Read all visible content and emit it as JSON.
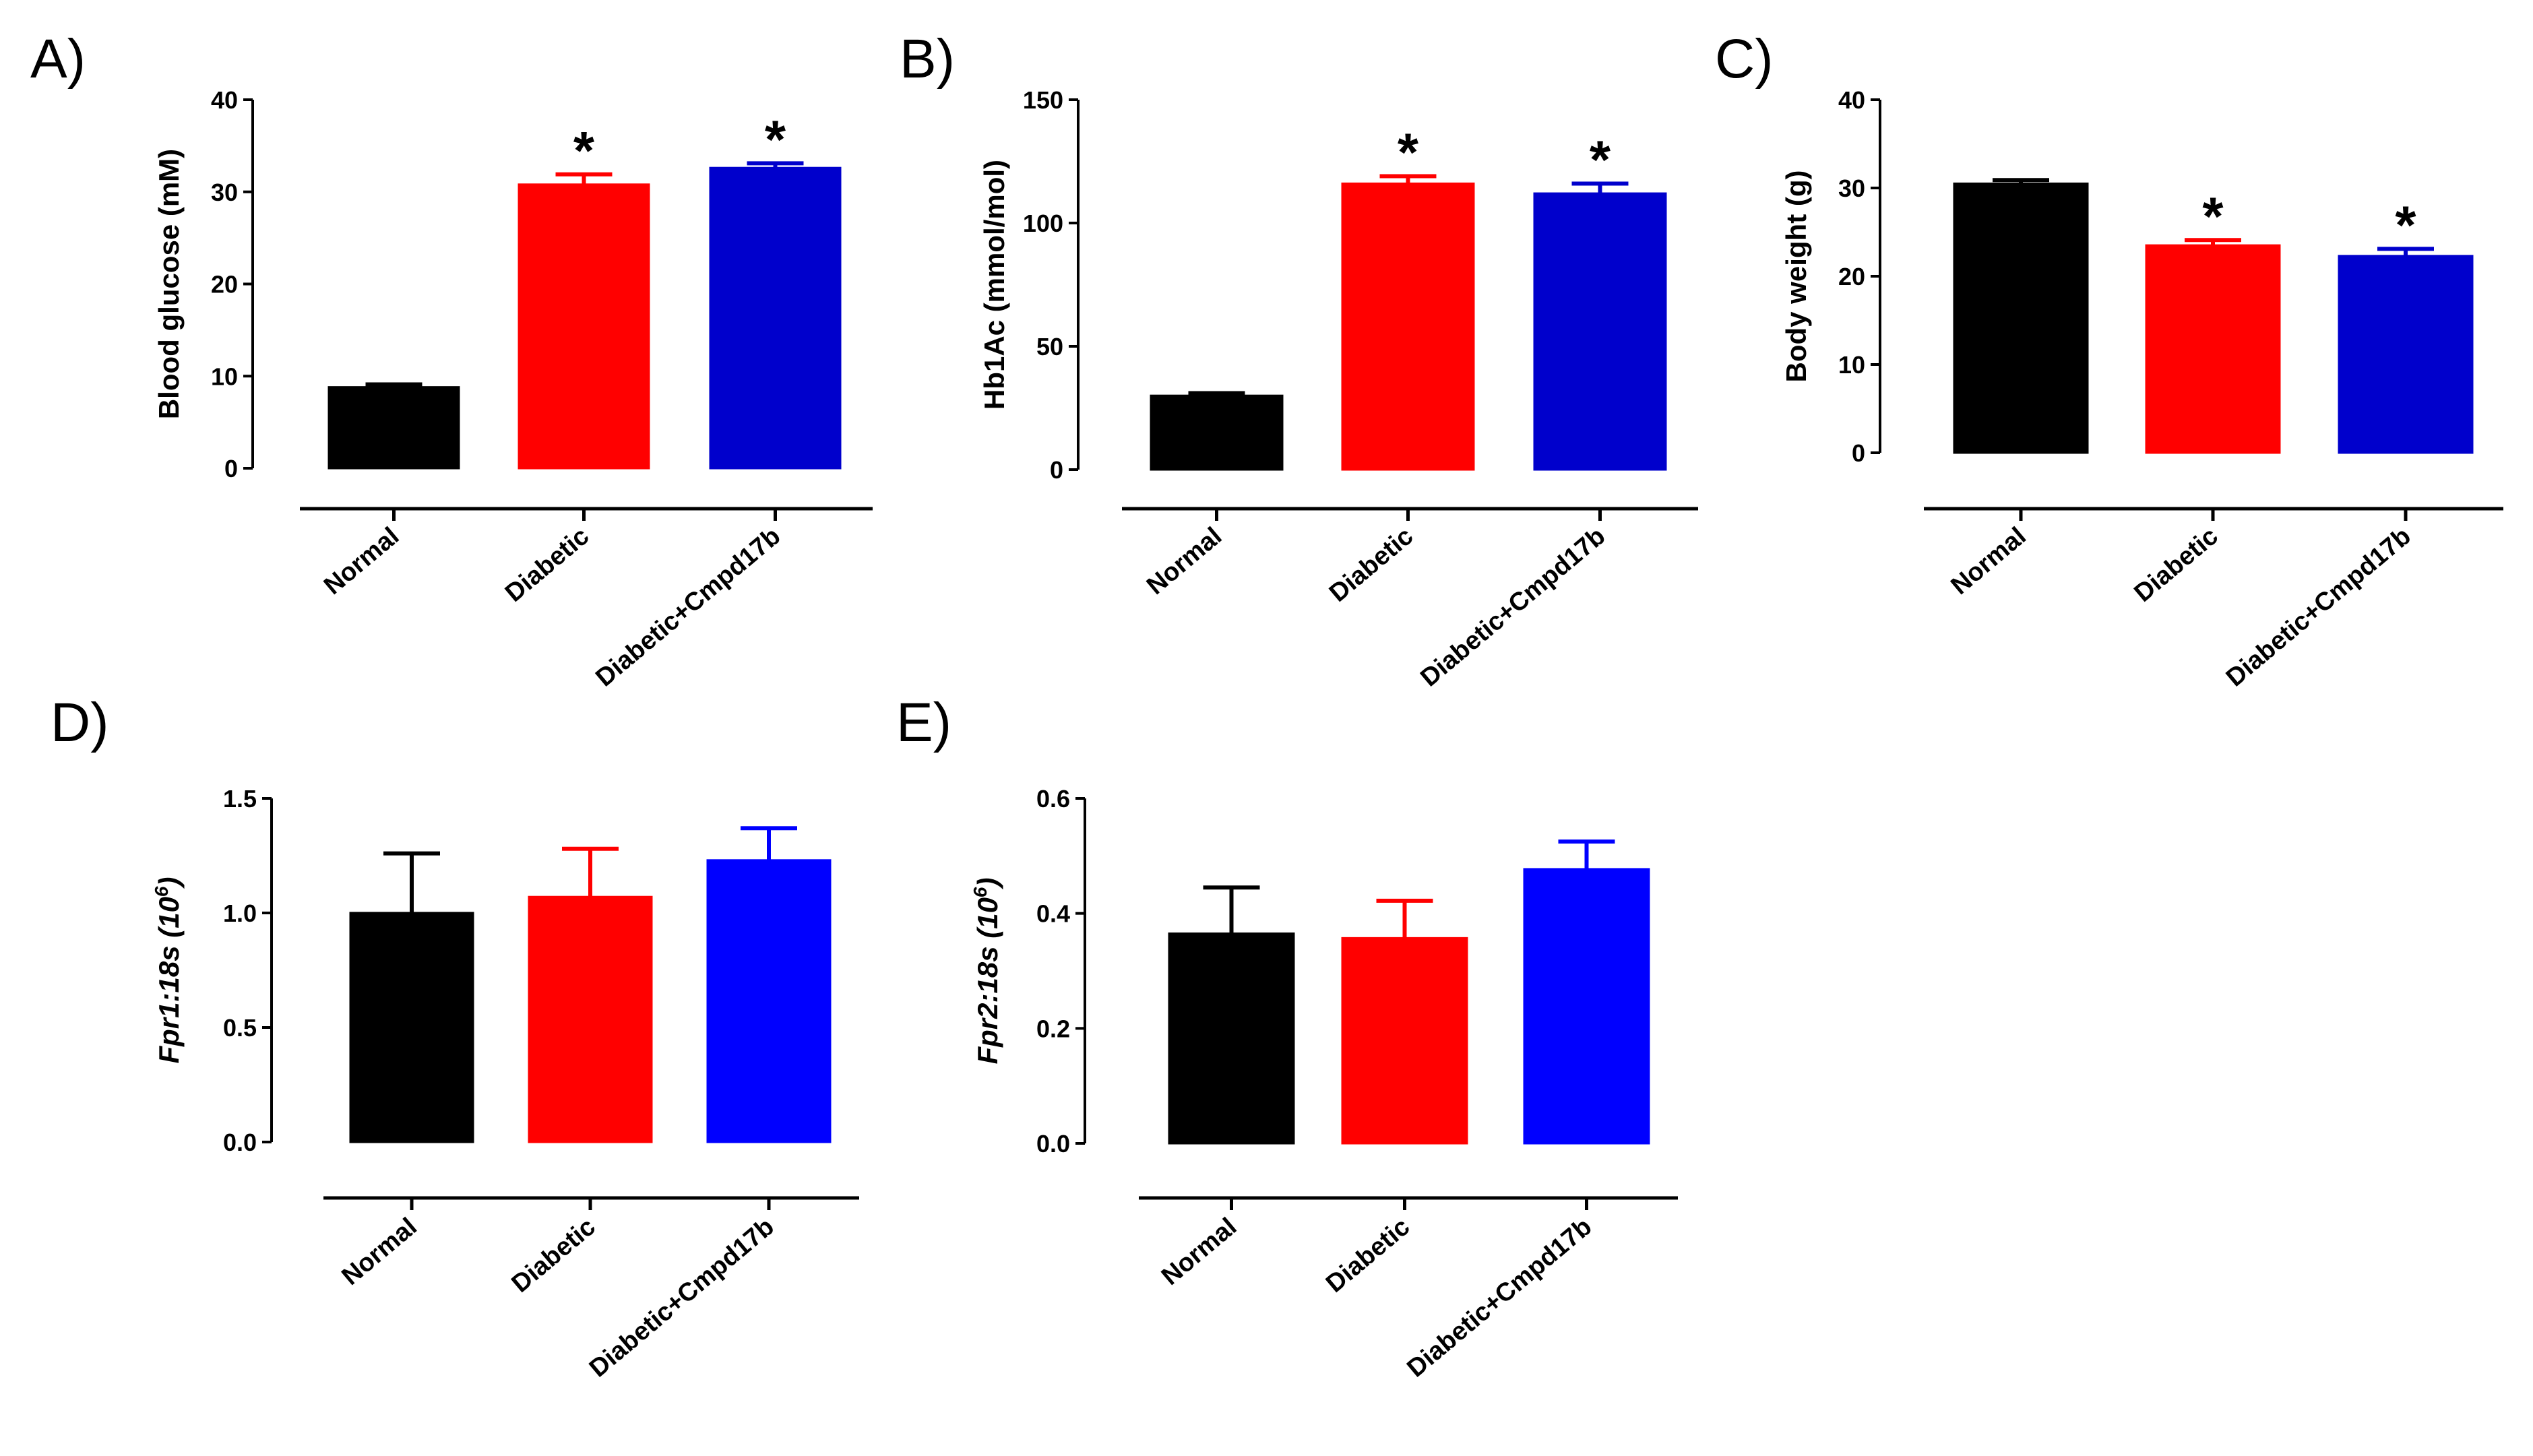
{
  "chart_data": [
    {
      "panel": "A)",
      "type": "bar",
      "ylabel": "Blood glucose (mM)",
      "categories": [
        "Normal",
        "Diabetic",
        "Diabetic+Cmpd17b"
      ],
      "values": [
        8.8,
        30.8,
        32.6
      ],
      "errors": [
        0.3,
        1.1,
        0.5
      ],
      "significance": [
        "",
        "*",
        "*"
      ],
      "colors": [
        "#000000",
        "#ff0000",
        "#0000cc"
      ],
      "ylim": [
        0,
        40
      ],
      "yticks": [
        "0",
        "10",
        "20",
        "30",
        "40"
      ]
    },
    {
      "panel": "B)",
      "type": "bar",
      "ylabel": "Hb1Ac (mmol/mol)",
      "categories": [
        "Normal",
        "Diabetic",
        "Diabetic+Cmpd17b"
      ],
      "values": [
        30,
        116,
        112
      ],
      "errors": [
        1,
        3,
        4
      ],
      "significance": [
        "",
        "*",
        "*"
      ],
      "colors": [
        "#000000",
        "#ff0000",
        "#0000cc"
      ],
      "ylim": [
        0,
        150
      ],
      "yticks": [
        "0",
        "50",
        "100",
        "150"
      ]
    },
    {
      "panel": "C)",
      "type": "bar",
      "ylabel": "Body weight (g)",
      "categories": [
        "Normal",
        "Diabetic",
        "Diabetic+Cmpd17b"
      ],
      "values": [
        30.5,
        23.5,
        22.3
      ],
      "errors": [
        0.4,
        0.6,
        0.8
      ],
      "significance": [
        "",
        "*",
        "*"
      ],
      "colors": [
        "#000000",
        "#ff0000",
        "#0000cc"
      ],
      "ylim": [
        0,
        40
      ],
      "yticks": [
        "0",
        "10",
        "20",
        "30",
        "40"
      ]
    },
    {
      "panel": "D)",
      "type": "bar",
      "ylabel": "Fpr1:18s (10",
      "ylabel_sup": "6",
      "ylabel_end": ")",
      "categories": [
        "Normal",
        "Diabetic",
        "Diabetic+Cmpd17b"
      ],
      "values": [
        1.0,
        1.07,
        1.23
      ],
      "errors": [
        0.26,
        0.21,
        0.14
      ],
      "significance": [
        "",
        "",
        ""
      ],
      "colors": [
        "#000000",
        "#ff0000",
        "#0000ff"
      ],
      "ylim": [
        0,
        1.5
      ],
      "yticks": [
        "0.0",
        "0.5",
        "1.0",
        "1.5"
      ]
    },
    {
      "panel": "E)",
      "type": "bar",
      "ylabel": "Fpr2:18s (10",
      "ylabel_sup": "6",
      "ylabel_end": ")",
      "categories": [
        "Normal",
        "Diabetic",
        "Diabetic+Cmpd17b"
      ],
      "values": [
        0.365,
        0.357,
        0.477
      ],
      "errors": [
        0.08,
        0.065,
        0.048
      ],
      "significance": [
        "",
        "",
        ""
      ],
      "colors": [
        "#000000",
        "#ff0000",
        "#0000ff"
      ],
      "ylim": [
        0,
        0.6
      ],
      "yticks": [
        "0.0",
        "0.2",
        "0.4",
        "0.6"
      ]
    }
  ]
}
